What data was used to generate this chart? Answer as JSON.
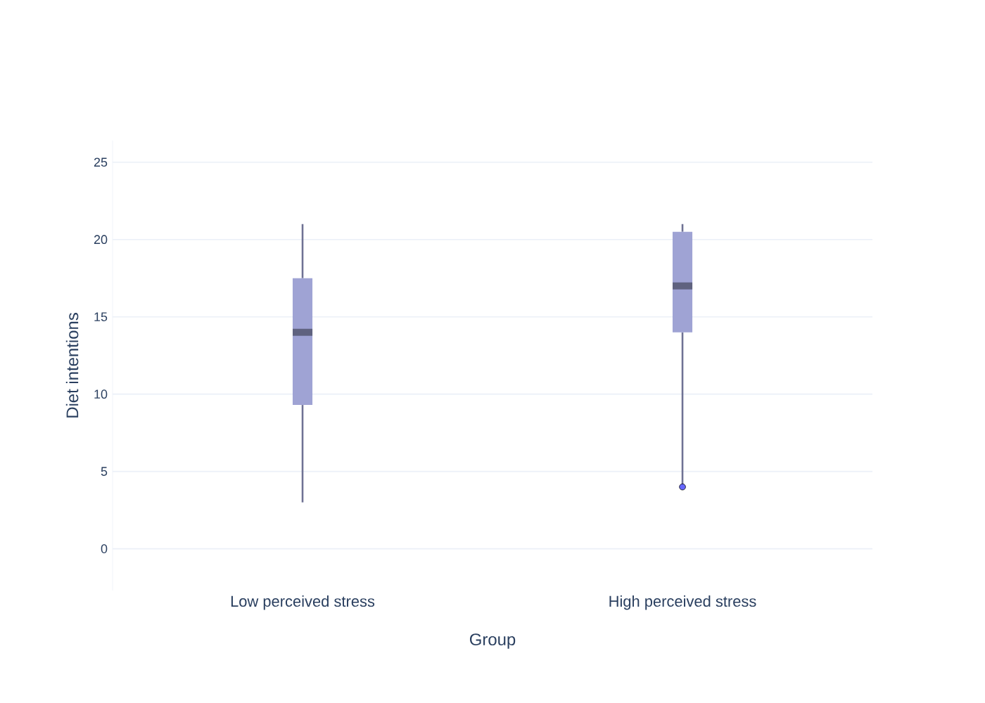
{
  "chart_data": {
    "type": "box",
    "xlabel": "Group",
    "ylabel": "Diet intentions",
    "categories": [
      "Low perceived stress",
      "High perceived stress"
    ],
    "series": [
      {
        "color": "#9fa3d4",
        "boxes": [
          {
            "low": 3,
            "q1": 9.3,
            "median": 14,
            "q3": 17.5,
            "high": 21
          },
          {
            "low": 4,
            "q1": 14,
            "median": 17,
            "q3": 20.5,
            "high": 21,
            "outliers": [
              4
            ]
          }
        ]
      }
    ],
    "ylim": [
      -2.7,
      26.4
    ],
    "yticks": [
      0,
      5,
      10,
      15,
      20,
      25
    ],
    "grid": "y"
  }
}
